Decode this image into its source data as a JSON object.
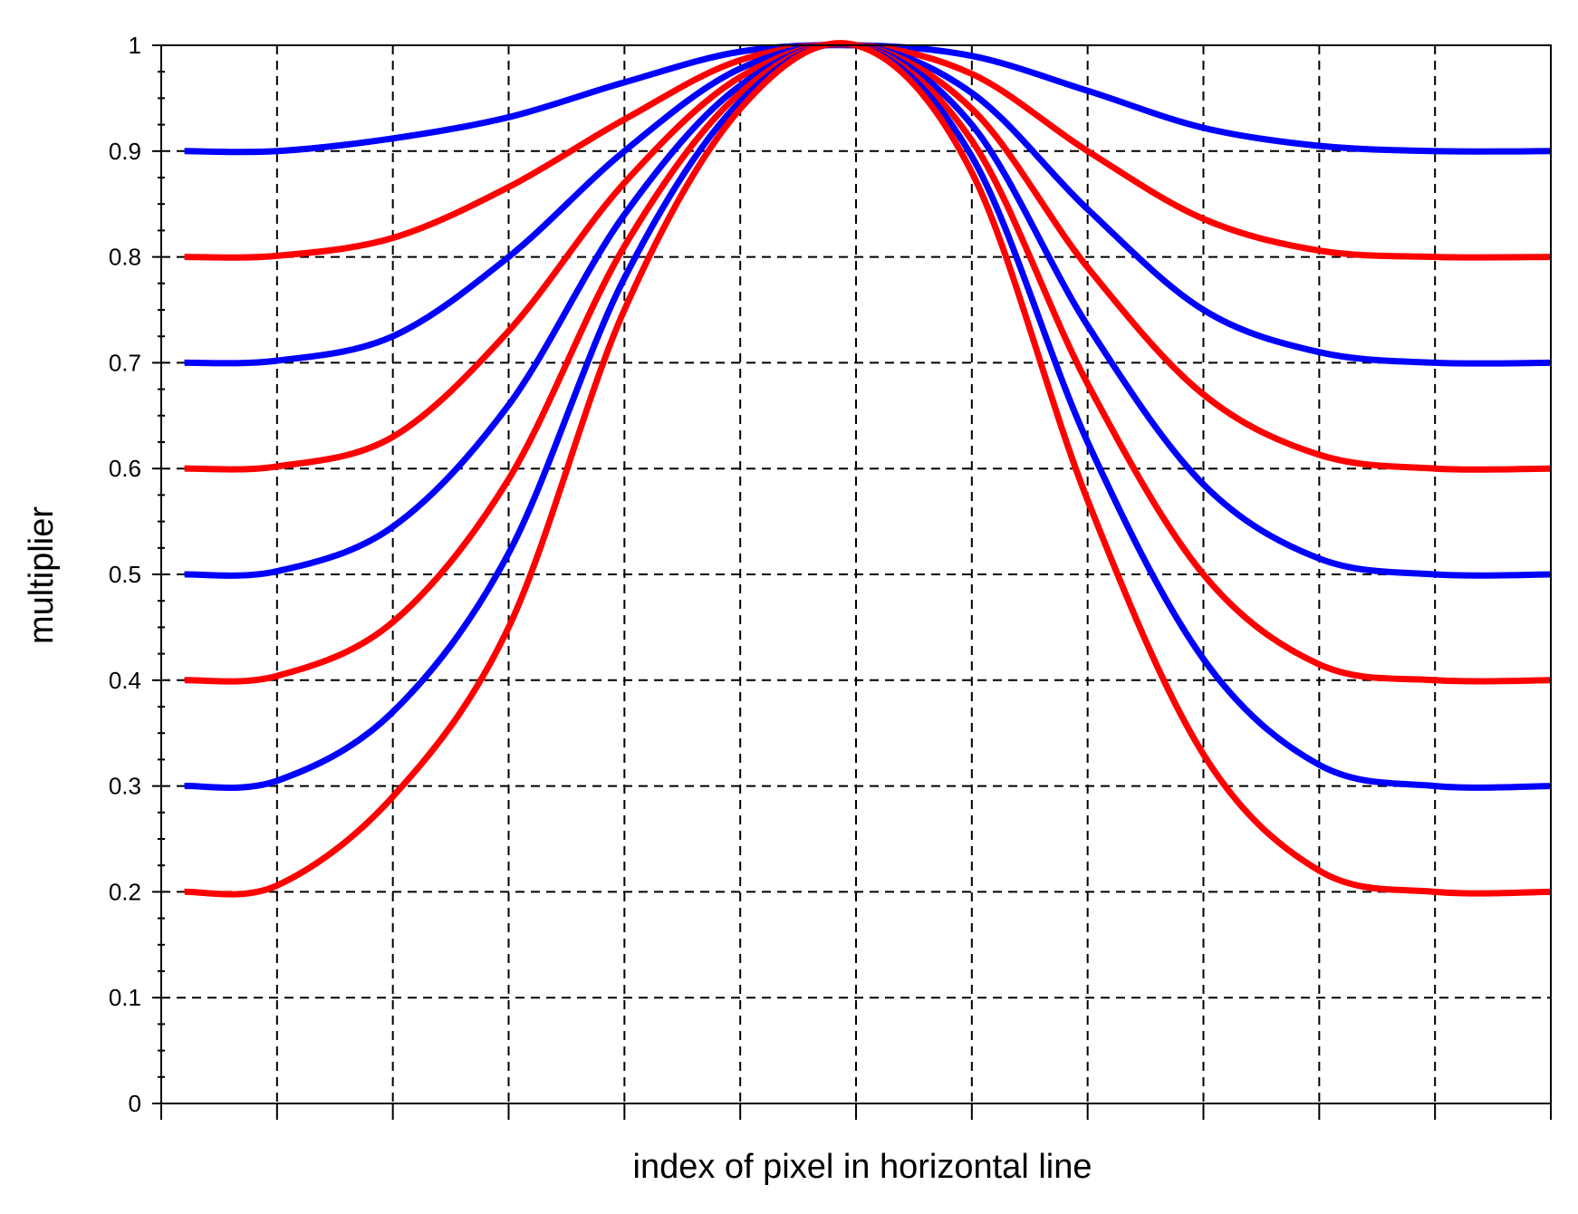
{
  "chart_data": {
    "type": "line",
    "title": "",
    "xlabel": "index of pixel in horizontal line",
    "ylabel": "multiplier",
    "xlim": [
      0,
      12
    ],
    "ylim": [
      0,
      1
    ],
    "x_tick_positions": [
      0,
      1,
      2,
      3,
      4,
      5,
      6,
      7,
      8,
      9,
      10,
      11,
      12
    ],
    "x_tick_labels_shown": false,
    "y_ticks": [
      0,
      0.1,
      0.2,
      0.3,
      0.4,
      0.5,
      0.6,
      0.7,
      0.8,
      0.9,
      1
    ],
    "y_tick_labels": [
      "0",
      "0.1",
      "0.2",
      "0.3",
      "0.4",
      "0.5",
      "0.6",
      "0.7",
      "0.8",
      "0.9",
      "1"
    ],
    "y_minor_step": 0.025,
    "grid": true,
    "grid_style": "dashed",
    "legend": "none",
    "curve_shape": {
      "peak_x": 6,
      "peak_value": 1,
      "flat_from_x": 0.2,
      "flat_to_x": 12,
      "description_values_at_x": [
        0.2,
        1,
        2,
        3,
        4,
        5,
        6,
        7,
        8,
        9,
        10,
        11,
        12
      ]
    },
    "series": [
      {
        "baseline": 0.9,
        "color": "#0000ff",
        "values": [
          0.9,
          0.9,
          0.912,
          0.932,
          0.965,
          0.994,
          1,
          0.99,
          0.957,
          0.922,
          0.905,
          0.9,
          0.9
        ]
      },
      {
        "baseline": 0.8,
        "color": "#ff0000",
        "values": [
          0.8,
          0.801,
          0.818,
          0.866,
          0.93,
          0.986,
          1,
          0.973,
          0.9,
          0.836,
          0.806,
          0.8,
          0.8
        ]
      },
      {
        "baseline": 0.7,
        "color": "#0000ff",
        "values": [
          0.7,
          0.702,
          0.725,
          0.8,
          0.9,
          0.978,
          1,
          0.955,
          0.845,
          0.75,
          0.71,
          0.7,
          0.7
        ]
      },
      {
        "baseline": 0.6,
        "color": "#ff0000",
        "values": [
          0.6,
          0.602,
          0.63,
          0.73,
          0.87,
          0.97,
          1,
          0.94,
          0.79,
          0.67,
          0.613,
          0.6,
          0.6
        ]
      },
      {
        "baseline": 0.5,
        "color": "#0000ff",
        "values": [
          0.5,
          0.503,
          0.545,
          0.66,
          0.84,
          0.962,
          1,
          0.925,
          0.735,
          0.585,
          0.515,
          0.5,
          0.5
        ]
      },
      {
        "baseline": 0.4,
        "color": "#ff0000",
        "values": [
          0.4,
          0.404,
          0.455,
          0.59,
          0.81,
          0.955,
          1,
          0.91,
          0.68,
          0.5,
          0.415,
          0.4,
          0.4
        ]
      },
      {
        "baseline": 0.3,
        "color": "#0000ff",
        "values": [
          0.3,
          0.305,
          0.37,
          0.52,
          0.78,
          0.947,
          1,
          0.895,
          0.625,
          0.42,
          0.32,
          0.3,
          0.3
        ]
      },
      {
        "baseline": 0.2,
        "color": "#ff0000",
        "values": [
          0.2,
          0.206,
          0.29,
          0.45,
          0.75,
          0.94,
          1,
          0.88,
          0.57,
          0.33,
          0.22,
          0.2,
          0.2
        ]
      }
    ]
  }
}
